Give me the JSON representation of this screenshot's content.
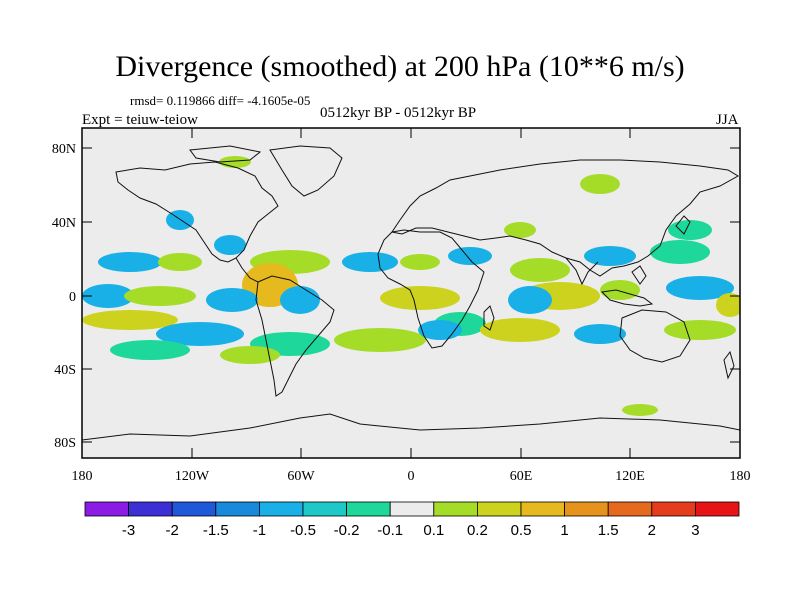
{
  "title": "Divergence (smoothed) at 200 hPa (10**6 m/s)",
  "stats_line": "rmsd= 0.119866 diff= -4.1605e-05",
  "experiment": "Expt = teiuw-teiow",
  "period": "0512kyr BP - 0512kyr BP",
  "season": "JJA",
  "map": {
    "lat_labels": [
      "80N",
      "40N",
      "0",
      "40S",
      "80S"
    ],
    "lon_labels": [
      "180",
      "120W",
      "60W",
      "0",
      "60E",
      "120E",
      "180"
    ]
  },
  "colorbar": {
    "labels": [
      "-3",
      "-2",
      "-1.5",
      "-1",
      "-0.5",
      "-0.2",
      "-0.1",
      "0.1",
      "0.2",
      "0.5",
      "1",
      "1.5",
      "2",
      "3"
    ],
    "colors": [
      "#8a1ce6",
      "#3d2fd6",
      "#1f58d9",
      "#1889db",
      "#18b0e6",
      "#1ec8c8",
      "#1ed79a",
      "#ececec",
      "#a5dc28",
      "#cdd21e",
      "#e6b91e",
      "#e6931e",
      "#e66a1e",
      "#e63c1e",
      "#e61414"
    ]
  },
  "palette": {
    "neutral": "#ececec",
    "pos_weak": "#a5dc28",
    "pos_mid": "#cdd21e",
    "pos_strong": "#e6b91e",
    "neg_weak": "#1ed79a",
    "neg_mid": "#18b0e6",
    "neg_strong": "#1889db"
  }
}
